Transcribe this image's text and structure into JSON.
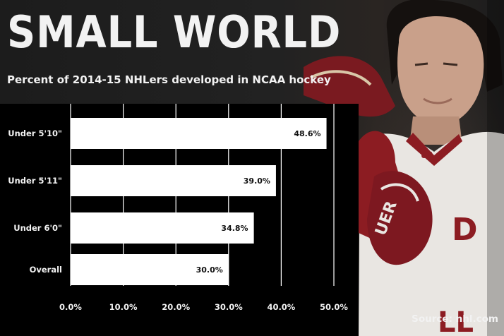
{
  "header": {
    "title": "SMALL WORLD",
    "subtitle": "Percent of 2014-15 NHLers developed in NCAA hockey"
  },
  "source": "Source: nhl.com",
  "colors": {
    "background": "#1b1b1b",
    "chart_panel": "#000000",
    "bar": "#ffffff",
    "text": "#f2f2f2",
    "jersey_red": "#8c1c22",
    "jersey_white": "#e9e6e2"
  },
  "chart_data": {
    "type": "bar",
    "orientation": "horizontal",
    "categories": [
      "Under 5'10\"",
      "Under 5'11\"",
      "Under 6'0\"",
      "Overall"
    ],
    "values": [
      48.6,
      39.0,
      34.8,
      30.0
    ],
    "data_labels": [
      "48.6%",
      "39.0%",
      "34.8%",
      "30.0%"
    ],
    "xlim": [
      0,
      50
    ],
    "xticks": [
      0,
      10,
      20,
      30,
      40,
      50
    ],
    "xtick_labels": [
      "0.0%",
      "10.0%",
      "20.0%",
      "30.0%",
      "40.0%",
      "50.0%"
    ],
    "grid": "vertical",
    "legend": "none"
  }
}
